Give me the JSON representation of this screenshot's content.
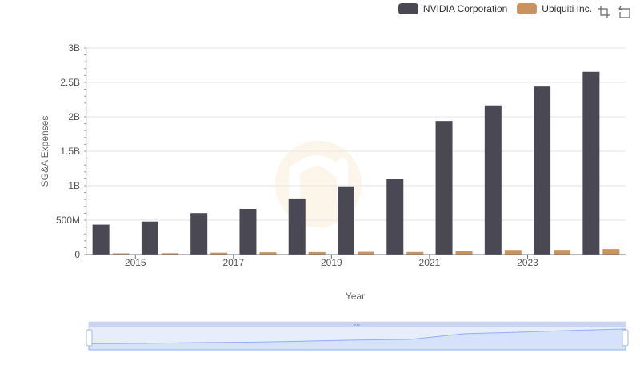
{
  "legend": {
    "series_0": "NVIDIA Corporation",
    "series_1": "Ubiquiti Inc."
  },
  "colors": {
    "nvidia": "#4a4953",
    "ubiquiti": "#c8935e",
    "slider_fill": "#d6e1fb",
    "slider_line": "#8fb0f7"
  },
  "toolbox": {
    "icons": [
      "zoom-icon",
      "restore-icon"
    ]
  },
  "chart_data": {
    "type": "bar",
    "title": "",
    "xlabel": "Year",
    "ylabel": "SG&A Expenses",
    "ylim": [
      0,
      3000000000
    ],
    "yticks": [
      0,
      500000000,
      1000000000,
      1500000000,
      2000000000,
      2500000000,
      3000000000
    ],
    "ytick_labels": [
      "0",
      "500M",
      "1B",
      "1.5B",
      "2B",
      "2.5B",
      "3B"
    ],
    "categories": [
      "2014",
      "2015",
      "2016",
      "2017",
      "2018",
      "2019",
      "2020",
      "2021",
      "2022",
      "2023",
      "2024"
    ],
    "xtick_labels": [
      "2015",
      "2017",
      "2019",
      "2021",
      "2023"
    ],
    "series": [
      {
        "name": "NVIDIA Corporation",
        "values": [
          435000000,
          480000000,
          602000000,
          663000000,
          815000000,
          991000000,
          1093000000,
          1940000000,
          2166000000,
          2440000000,
          2654000000
        ]
      },
      {
        "name": "Ubiquiti Inc.",
        "values": [
          18000000,
          20000000,
          27000000,
          33000000,
          36000000,
          40000000,
          37000000,
          51000000,
          67000000,
          68000000,
          80000000
        ]
      }
    ]
  }
}
